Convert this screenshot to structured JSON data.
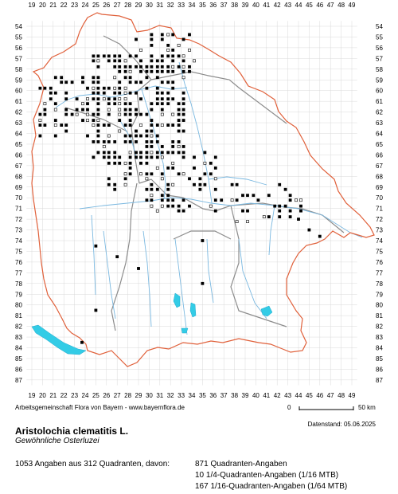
{
  "map": {
    "col_labels": [
      "19",
      "20",
      "21",
      "22",
      "23",
      "24",
      "25",
      "26",
      "27",
      "28",
      "29",
      "30",
      "31",
      "32",
      "33",
      "34",
      "35",
      "36",
      "37",
      "38",
      "39",
      "40",
      "41",
      "42",
      "43",
      "44",
      "45",
      "46",
      "47",
      "48",
      "49"
    ],
    "row_labels": [
      "54",
      "55",
      "56",
      "57",
      "58",
      "59",
      "60",
      "61",
      "62",
      "63",
      "64",
      "65",
      "66",
      "67",
      "68",
      "69",
      "70",
      "71",
      "72",
      "73",
      "74",
      "75",
      "76",
      "77",
      "78",
      "79",
      "80",
      "81",
      "82",
      "83",
      "84",
      "85",
      "86",
      "87"
    ],
    "colors": {
      "border": "#e0603a",
      "district": "#8c8c8c",
      "river": "#7ab8e0",
      "lake": "#33cce6",
      "grid": "#d9d9d9"
    }
  },
  "footer": {
    "credit": "Arbeitsgemeinschaft Flora von Bayern - www.bayernflora.de",
    "scale_start": "0",
    "scale_end": "50 km",
    "datestand": "Datenstand: 05.06.2025",
    "species_name": "Aristolochia clematitis L.",
    "common_name": "Gewöhnliche Osterluzei",
    "summary": "1053 Angaben aus 312 Quadranten, davon:",
    "stat_quadrant": "871 Quadranten-Angaben",
    "stat_quarter": "10 1/4-Quadranten-Angaben (1/16 MTB)",
    "stat_sixteenth": "167 1/16-Quadranten-Angaben (1/64 MTB)"
  }
}
